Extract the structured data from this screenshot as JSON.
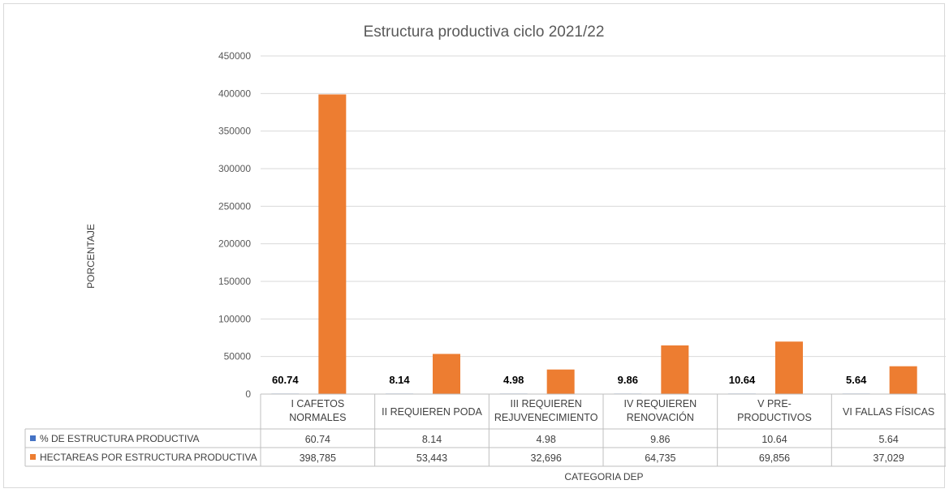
{
  "chart_data": {
    "type": "bar",
    "title": "Estructura productiva ciclo 2021/22",
    "ylabel": "PORCENTAJE",
    "xlabel": "CATEGORIA  DEP",
    "ylim": [
      0,
      450000
    ],
    "y_ticks": [
      "0",
      "50000",
      "100000",
      "150000",
      "200000",
      "250000",
      "300000",
      "350000",
      "400000",
      "450000"
    ],
    "grid": true,
    "legend": "data-table",
    "categories": [
      [
        "I CAFETOS",
        "NORMALES"
      ],
      [
        "II REQUIEREN PODA"
      ],
      [
        "III REQUIEREN",
        "REJUVENECIMIENTO"
      ],
      [
        "IV REQUIEREN",
        "RENOVACIÓN"
      ],
      [
        "V PRE-",
        "PRODUCTIVOS"
      ],
      [
        "VI FALLAS FÍSICAS"
      ]
    ],
    "series": [
      {
        "name": "% DE ESTRUCTURA PRODUCTIVA",
        "color": "#4472c4",
        "values": [
          60.74,
          8.14,
          4.98,
          9.86,
          10.64,
          5.64
        ],
        "table_values": [
          "60.74",
          "8.14",
          "4.98",
          "9.86",
          "10.64",
          "5.64"
        ],
        "data_labels": [
          "60.74",
          "8.14",
          "4.98",
          "9.86",
          "10.64",
          "5.64"
        ]
      },
      {
        "name": "HECTAREAS POR ESTRUCTURA PRODUCTIVA",
        "color": "#ed7d31",
        "values": [
          398785,
          53443,
          32696,
          64735,
          69856,
          37029
        ],
        "table_values": [
          "398,785",
          "53,443",
          "32,696",
          "64,735",
          "69,856",
          "37,029"
        ]
      }
    ]
  }
}
